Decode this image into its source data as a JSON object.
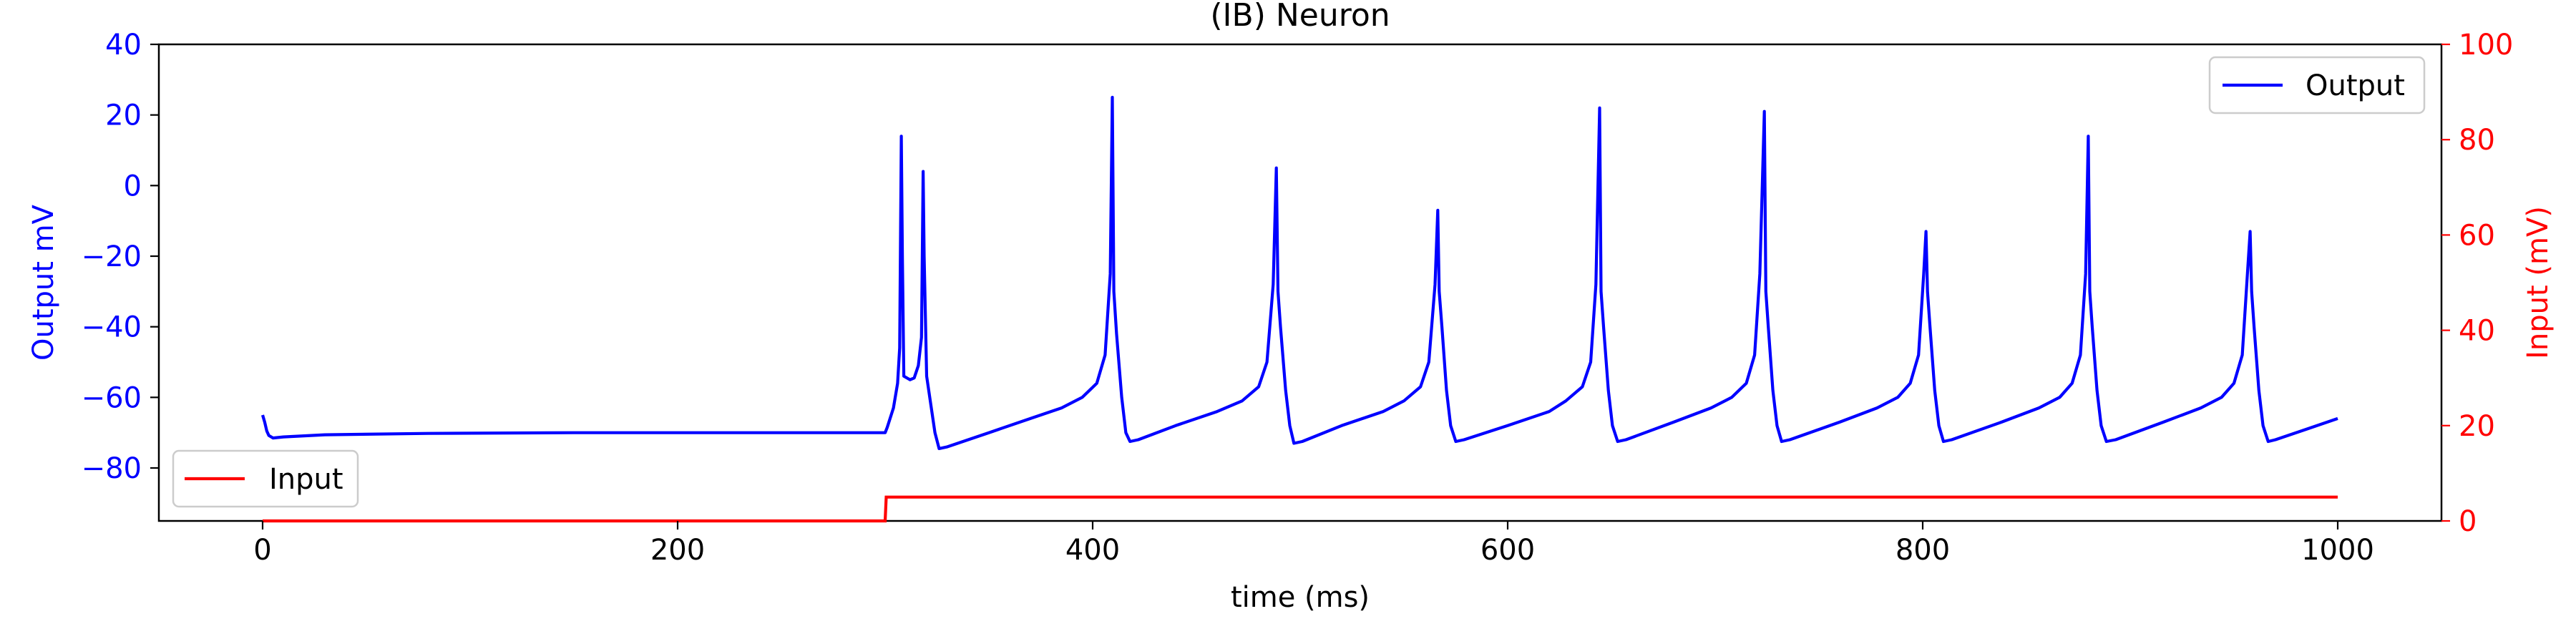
{
  "chart_data": {
    "type": "line",
    "title": "(IB) Neuron",
    "xlabel": "time (ms)",
    "ylabel_left": "Output mV",
    "ylabel_right": "Input (mV)",
    "xlim": [
      -50,
      1050
    ],
    "ylim_left": [
      -95,
      40
    ],
    "ylim_right": [
      0,
      100
    ],
    "x_ticks": [
      0,
      200,
      400,
      600,
      800,
      1000
    ],
    "x_tick_labels": [
      "0",
      "200",
      "400",
      "600",
      "800",
      "1000"
    ],
    "y_left_ticks": [
      40,
      20,
      0,
      -20,
      -40,
      -60,
      -80
    ],
    "y_left_tick_labels": [
      "40",
      "20",
      "0",
      "−20",
      "−40",
      "−60",
      "−80"
    ],
    "y_right_ticks": [
      100,
      80,
      60,
      40,
      20,
      0
    ],
    "y_right_tick_labels": [
      "100",
      "80",
      "60",
      "40",
      "20",
      "0"
    ],
    "colors": {
      "output": "#0000ff",
      "input": "#ff0000",
      "left_axis": "#0000ff",
      "right_axis": "#ff0000"
    },
    "legend": [
      {
        "name": "Output",
        "placement": "upper-right",
        "color": "#0000ff"
      },
      {
        "name": "Input",
        "placement": "lower-left",
        "color": "#ff0000"
      }
    ],
    "series": [
      {
        "name": "Output",
        "axis": "left",
        "points": [
          [
            0,
            -65
          ],
          [
            1,
            -67
          ],
          [
            2,
            -69.5
          ],
          [
            3,
            -70.8
          ],
          [
            5,
            -71.5
          ],
          [
            10,
            -71.2
          ],
          [
            30,
            -70.6
          ],
          [
            80,
            -70.2
          ],
          [
            150,
            -70.0
          ],
          [
            300,
            -70.0
          ],
          [
            301,
            -68.5
          ],
          [
            304,
            -63
          ],
          [
            306,
            -56
          ],
          [
            307,
            -46
          ],
          [
            307.8,
            14
          ],
          [
            308.3,
            -20
          ],
          [
            309,
            -54
          ],
          [
            312,
            -55
          ],
          [
            314,
            -54.5
          ],
          [
            316,
            -51
          ],
          [
            317.5,
            -43
          ],
          [
            318.3,
            4
          ],
          [
            318.8,
            -20
          ],
          [
            320,
            -54
          ],
          [
            322,
            -62
          ],
          [
            324,
            -70
          ],
          [
            326,
            -74.5
          ],
          [
            330,
            -74
          ],
          [
            350,
            -70
          ],
          [
            370,
            -66
          ],
          [
            385,
            -63
          ],
          [
            395,
            -60
          ],
          [
            402,
            -56
          ],
          [
            406,
            -48
          ],
          [
            408.5,
            -25
          ],
          [
            409.5,
            25
          ],
          [
            410.2,
            -30
          ],
          [
            411.5,
            -42
          ],
          [
            414,
            -60
          ],
          [
            416,
            -70
          ],
          [
            418,
            -72.5
          ],
          [
            422,
            -72
          ],
          [
            440,
            -68
          ],
          [
            460,
            -64
          ],
          [
            472,
            -61
          ],
          [
            480,
            -57
          ],
          [
            484,
            -50
          ],
          [
            487,
            -28
          ],
          [
            488.5,
            5
          ],
          [
            489.3,
            -30
          ],
          [
            490.5,
            -40
          ],
          [
            493,
            -58
          ],
          [
            495,
            -68
          ],
          [
            497,
            -73
          ],
          [
            501,
            -72.5
          ],
          [
            520,
            -68
          ],
          [
            540,
            -64
          ],
          [
            550,
            -61
          ],
          [
            558,
            -57
          ],
          [
            562,
            -50
          ],
          [
            565,
            -28
          ],
          [
            566.3,
            -7
          ],
          [
            567,
            -30
          ],
          [
            568.3,
            -40
          ],
          [
            570.5,
            -58
          ],
          [
            572.5,
            -68
          ],
          [
            575,
            -72.5
          ],
          [
            579,
            -72
          ],
          [
            600,
            -68
          ],
          [
            620,
            -64
          ],
          [
            628,
            -61
          ],
          [
            636,
            -57
          ],
          [
            640,
            -50
          ],
          [
            642.5,
            -28
          ],
          [
            644.3,
            22
          ],
          [
            645,
            -30
          ],
          [
            646.2,
            -40
          ],
          [
            648.5,
            -58
          ],
          [
            650.5,
            -68
          ],
          [
            653,
            -72.5
          ],
          [
            657,
            -72
          ],
          [
            680,
            -67
          ],
          [
            698,
            -63
          ],
          [
            708,
            -60
          ],
          [
            715,
            -56
          ],
          [
            719,
            -48
          ],
          [
            721.5,
            -25
          ],
          [
            723.7,
            21
          ],
          [
            724.4,
            -30
          ],
          [
            725.6,
            -40
          ],
          [
            727.8,
            -58
          ],
          [
            729.8,
            -68
          ],
          [
            732,
            -72.5
          ],
          [
            736,
            -72
          ],
          [
            760,
            -67
          ],
          [
            778,
            -63
          ],
          [
            788,
            -60
          ],
          [
            794,
            -56
          ],
          [
            798,
            -48
          ],
          [
            800.5,
            -25
          ],
          [
            801.6,
            -13
          ],
          [
            802.3,
            -30
          ],
          [
            803.5,
            -40
          ],
          [
            805.8,
            -58
          ],
          [
            807.8,
            -68
          ],
          [
            810,
            -72.5
          ],
          [
            814,
            -72
          ],
          [
            838,
            -67
          ],
          [
            856,
            -63
          ],
          [
            866,
            -60
          ],
          [
            872,
            -56
          ],
          [
            876,
            -48
          ],
          [
            878.5,
            -25
          ],
          [
            879.8,
            14
          ],
          [
            880.5,
            -30
          ],
          [
            881.7,
            -40
          ],
          [
            884,
            -58
          ],
          [
            886,
            -68
          ],
          [
            888.5,
            -72.5
          ],
          [
            893,
            -72
          ],
          [
            916,
            -67
          ],
          [
            934,
            -63
          ],
          [
            944,
            -60
          ],
          [
            950,
            -56
          ],
          [
            954,
            -48
          ],
          [
            956.5,
            -25
          ],
          [
            957.8,
            -13
          ],
          [
            958.5,
            -30
          ],
          [
            959.7,
            -40
          ],
          [
            962,
            -58
          ],
          [
            964,
            -68
          ],
          [
            966.5,
            -72.5
          ],
          [
            970,
            -72
          ],
          [
            985,
            -69
          ],
          [
            1000,
            -66
          ]
        ]
      },
      {
        "name": "Input",
        "axis": "right",
        "points": [
          [
            0,
            0
          ],
          [
            300,
            0
          ],
          [
            300.5,
            5
          ],
          [
            1000,
            5
          ]
        ]
      }
    ]
  }
}
